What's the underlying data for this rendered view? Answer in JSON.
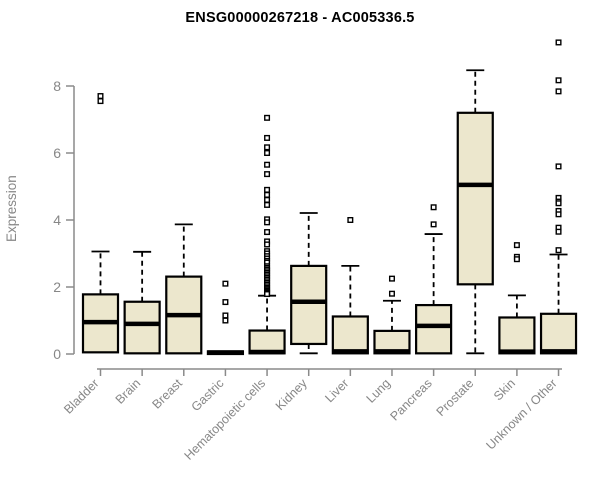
{
  "chart_data": {
    "type": "boxplot",
    "title": "ENSG00000267218 - AC005336.5",
    "ylabel": "Expression",
    "xlabel": "",
    "yticks": [
      0,
      2,
      4,
      6,
      8
    ],
    "ylim": [
      0,
      9.6
    ],
    "grid": false,
    "legend": "none",
    "categories": [
      "Bladder",
      "Brain",
      "Breast",
      "Gastric",
      "Hematopoietic cells",
      "Kidney",
      "Liver",
      "Lung",
      "Pancreas",
      "Prostate",
      "Skin",
      "Unknown / Other"
    ],
    "boxes": [
      {
        "category": "Bladder",
        "whisker_low": 0,
        "q1": 0.05,
        "median": 0.95,
        "q3": 1.78,
        "whisker_high": 3.06,
        "outliers": [
          7.55,
          7.7
        ]
      },
      {
        "category": "Brain",
        "whisker_low": 0,
        "q1": 0.02,
        "median": 0.9,
        "q3": 1.56,
        "whisker_high": 3.05,
        "outliers": []
      },
      {
        "category": "Breast",
        "whisker_low": 0,
        "q1": 0.02,
        "median": 1.16,
        "q3": 2.31,
        "whisker_high": 3.87,
        "outliers": []
      },
      {
        "category": "Gastric",
        "whisker_low": 0,
        "q1": 0,
        "median": 0.04,
        "q3": 0.08,
        "whisker_high": 0.08,
        "outliers": [
          2.1,
          1.55,
          1.15,
          1.0
        ]
      },
      {
        "category": "Hematopoietic cells",
        "whisker_low": 0,
        "q1": 0.02,
        "median": 0.06,
        "q3": 0.7,
        "whisker_high": 1.74,
        "outliers": [
          7.05,
          6.45,
          6.17,
          6.0,
          5.65,
          5.37,
          4.9,
          4.75,
          4.6,
          4.45,
          4.02,
          3.93,
          3.64,
          3.36,
          3.27,
          3.07,
          3.0,
          2.92,
          2.85,
          2.78,
          2.73,
          2.62,
          2.57,
          2.52,
          2.47,
          2.42,
          2.37,
          2.32,
          2.27,
          2.22,
          2.17,
          2.12,
          2.07,
          2.02,
          1.97,
          1.93,
          1.89,
          1.85,
          1.82,
          1.79
        ]
      },
      {
        "category": "Kidney",
        "whisker_low": 0.02,
        "q1": 0.3,
        "median": 1.56,
        "q3": 2.63,
        "whisker_high": 4.21,
        "outliers": []
      },
      {
        "category": "Liver",
        "whisker_low": 0,
        "q1": 0.02,
        "median": 0.08,
        "q3": 1.12,
        "whisker_high": 2.63,
        "outliers": [
          4.0
        ]
      },
      {
        "category": "Lung",
        "whisker_low": 0,
        "q1": 0.02,
        "median": 0.08,
        "q3": 0.69,
        "whisker_high": 1.59,
        "outliers": [
          2.25,
          1.8
        ]
      },
      {
        "category": "Pancreas",
        "whisker_low": 0,
        "q1": 0.02,
        "median": 0.84,
        "q3": 1.46,
        "whisker_high": 3.58,
        "outliers": [
          4.38,
          3.87
        ]
      },
      {
        "category": "Prostate",
        "whisker_low": 0.02,
        "q1": 2.08,
        "median": 5.05,
        "q3": 7.2,
        "whisker_high": 8.47,
        "outliers": []
      },
      {
        "category": "Skin",
        "whisker_low": 0,
        "q1": 0.02,
        "median": 0.07,
        "q3": 1.09,
        "whisker_high": 1.75,
        "outliers": [
          3.25,
          2.9,
          2.83
        ]
      },
      {
        "category": "Unknown / Other",
        "whisker_low": 0,
        "q1": 0.02,
        "median": 0.08,
        "q3": 1.2,
        "whisker_high": 2.97,
        "outliers": [
          9.3,
          8.17,
          7.84,
          5.6,
          4.66,
          4.55,
          4.5,
          4.27,
          4.17,
          3.77,
          3.65,
          3.1
        ]
      }
    ],
    "colors": {
      "box_fill": "#ece7cd",
      "box_border": "#000000",
      "median": "#000000",
      "whisker": "#000000",
      "outlier_stroke": "#000000",
      "axis_line": "#8a8a8a",
      "tick_text": "#878787",
      "title_text": "#000000",
      "background": "#ffffff"
    }
  }
}
